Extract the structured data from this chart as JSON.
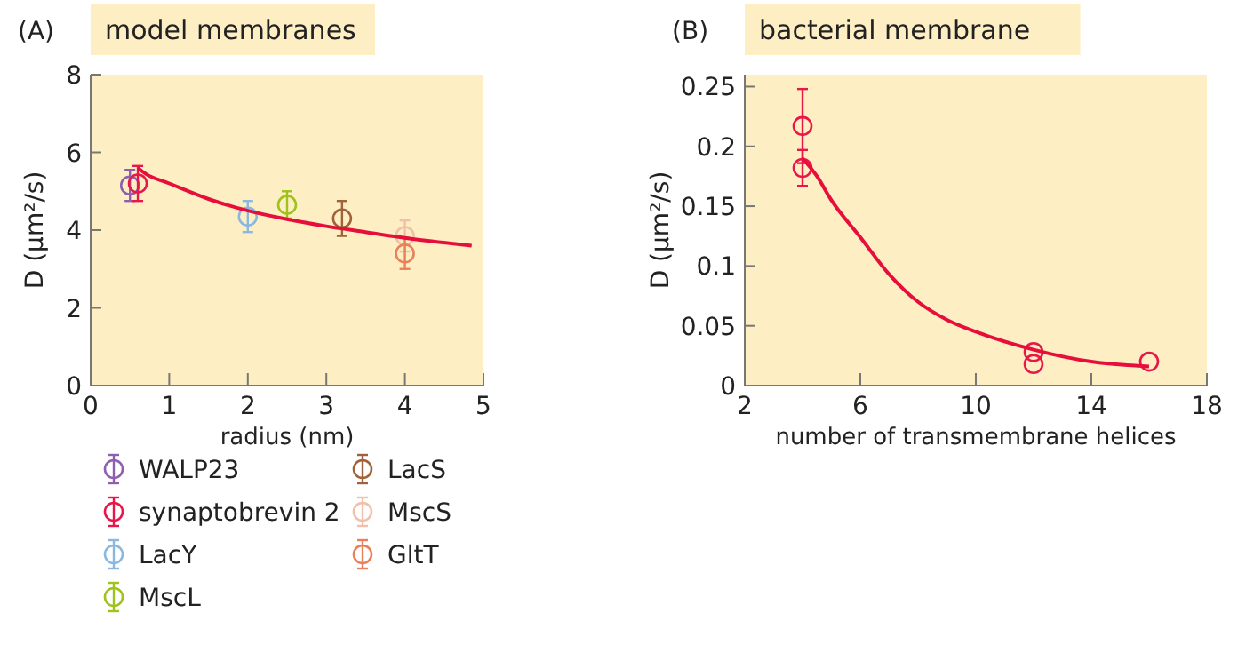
{
  "chart_data": [
    {
      "type": "scatter",
      "title": "model membranes",
      "annotations": [
        "(A)"
      ],
      "xlabel": "radius (nm)",
      "ylabel": "D (μm²/s)",
      "xlim": [
        0,
        5
      ],
      "xticks": [
        0,
        1,
        2,
        3,
        4,
        5
      ],
      "ylim": [
        0,
        8
      ],
      "yticks": [
        0,
        2,
        4,
        6,
        8
      ],
      "grid": false,
      "legend": "bottom",
      "marker": "circle",
      "series": [
        {
          "name": "WALP23",
          "color": "#8e5fb0",
          "x": [
            0.5
          ],
          "values": [
            5.15
          ],
          "errors": [
            0.4
          ]
        },
        {
          "name": "synaptobrevin 2",
          "color": "#e8174a",
          "x": [
            0.6
          ],
          "values": [
            5.2
          ],
          "errors": [
            0.45
          ]
        },
        {
          "name": "LacY",
          "color": "#8ab8e0",
          "x": [
            2
          ],
          "values": [
            4.35
          ],
          "errors": [
            0.4
          ]
        },
        {
          "name": "MscL",
          "color": "#9fc21c",
          "x": [
            2.5
          ],
          "values": [
            4.65
          ],
          "errors": [
            0.35
          ]
        },
        {
          "name": "LacS",
          "color": "#a0623a",
          "x": [
            3.2
          ],
          "values": [
            4.3
          ],
          "errors": [
            0.45
          ]
        },
        {
          "name": "MscS",
          "color": "#f2c0a8",
          "x": [
            4
          ],
          "values": [
            3.85
          ],
          "errors": [
            0.4
          ]
        },
        {
          "name": "GltT",
          "color": "#e8805a",
          "x": [
            4
          ],
          "values": [
            3.4
          ],
          "errors": [
            0.4
          ]
        },
        {
          "type": "line",
          "marker": "none",
          "color": "#e60f3c",
          "x": [
            0.6,
            0.7,
            1,
            1.5,
            2,
            2.5,
            3,
            3.5,
            4,
            4.85
          ],
          "values": [
            5.6,
            5.45,
            5.2,
            4.8,
            4.5,
            4.28,
            4.1,
            3.95,
            3.8,
            3.6
          ]
        }
      ]
    },
    {
      "type": "scatter",
      "title": "bacterial membrane",
      "annotations": [
        "(B)"
      ],
      "xlabel": "number of transmembrane helices",
      "ylabel": "D (μm²/s)",
      "xlim": [
        2,
        18
      ],
      "xticks": [
        2,
        6,
        10,
        14,
        18
      ],
      "ylim": [
        0,
        0.26
      ],
      "yticks": [
        0,
        0.05,
        0.1,
        0.15,
        0.2,
        0.25
      ],
      "grid": false,
      "marker": "circle",
      "series": [
        {
          "color": "#e8174a",
          "x": [
            4,
            4,
            12,
            12,
            16
          ],
          "values": [
            0.217,
            0.182,
            0.028,
            0.018,
            0.02
          ],
          "errors": [
            0.031,
            0.015,
            null,
            null,
            null
          ]
        },
        {
          "type": "line",
          "marker": "none",
          "color": "#e60f3c",
          "x": [
            4,
            4.5,
            5,
            6,
            7,
            8,
            9,
            10,
            12,
            14,
            16
          ],
          "values": [
            0.19,
            0.175,
            0.155,
            0.124,
            0.093,
            0.07,
            0.055,
            0.045,
            0.03,
            0.02,
            0.016
          ]
        }
      ]
    }
  ]
}
